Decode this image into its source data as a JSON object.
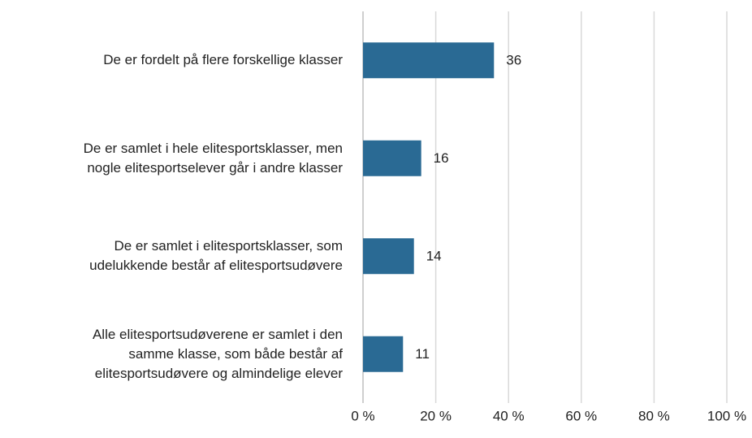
{
  "chart_data": {
    "type": "barh",
    "categories": [
      "De er fordelt på flere forskellige klasser",
      "De er samlet i hele elitesportsklasser, men\nnogle elitesportselever går i andre klasser",
      "De er samlet i elitesportsklasser, som\nudelukkende består af elitesportsudøvere",
      "Alle elitesportsudøverene er samlet i den\nsamme klasse, som både består af\nelitesportsudøvere og almindelige elever"
    ],
    "values": [
      36,
      16,
      14,
      11
    ],
    "color": "#2a6a94",
    "xlim": [
      0,
      100
    ],
    "xticks": [
      {
        "value": 0,
        "label": "0 %"
      },
      {
        "value": 20,
        "label": "20 %"
      },
      {
        "value": 40,
        "label": "40 %"
      },
      {
        "value": 60,
        "label": "60 %"
      },
      {
        "value": 80,
        "label": "80 %"
      },
      {
        "value": 100,
        "label": "100 %"
      }
    ],
    "grid": true
  }
}
